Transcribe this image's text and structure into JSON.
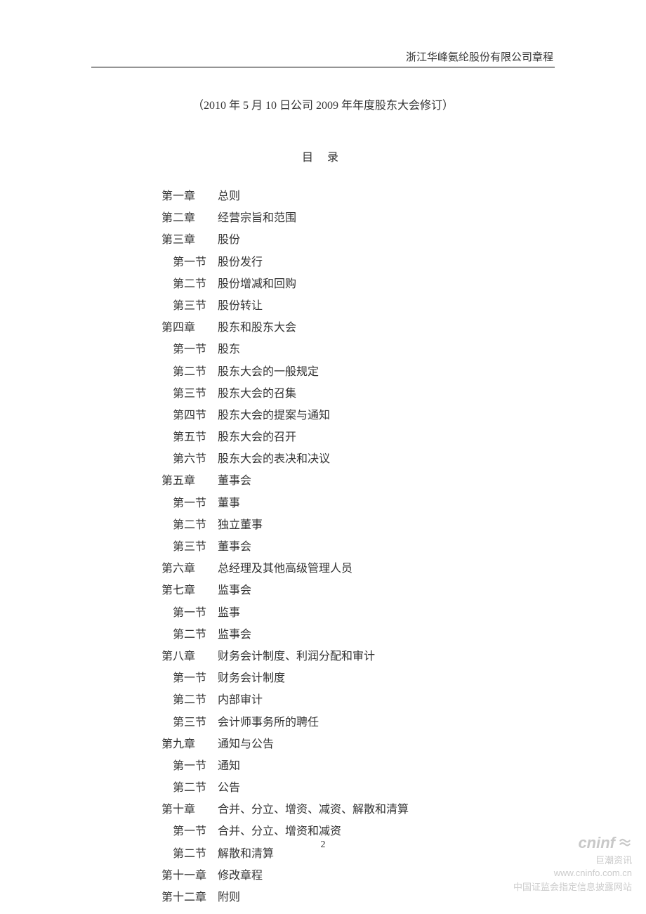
{
  "header": {
    "company_name": "浙江华峰氨纶股份有限公司章程"
  },
  "subtitle": "（2010 年 5 月 10 日公司 2009 年年度股东大会修订）",
  "toc_title": "目 录",
  "toc": [
    {
      "type": "chapter",
      "label": "第一章",
      "title": "总则"
    },
    {
      "type": "chapter",
      "label": "第二章",
      "title": "经营宗旨和范围"
    },
    {
      "type": "chapter",
      "label": "第三章",
      "title": "股份"
    },
    {
      "type": "section",
      "label": "第一节",
      "title": "股份发行"
    },
    {
      "type": "section",
      "label": "第二节",
      "title": "股份增减和回购"
    },
    {
      "type": "section",
      "label": "第三节",
      "title": "股份转让"
    },
    {
      "type": "chapter",
      "label": "第四章",
      "title": "股东和股东大会"
    },
    {
      "type": "section",
      "label": "第一节",
      "title": "股东"
    },
    {
      "type": "section",
      "label": "第二节",
      "title": "股东大会的一般规定"
    },
    {
      "type": "section",
      "label": "第三节",
      "title": "股东大会的召集"
    },
    {
      "type": "section",
      "label": "第四节",
      "title": "股东大会的提案与通知"
    },
    {
      "type": "section",
      "label": "第五节",
      "title": "股东大会的召开"
    },
    {
      "type": "section",
      "label": "第六节",
      "title": "股东大会的表决和决议"
    },
    {
      "type": "chapter",
      "label": "第五章",
      "title": "董事会"
    },
    {
      "type": "section",
      "label": "第一节",
      "title": "董事"
    },
    {
      "type": "section",
      "label": "第二节",
      "title": "独立董事"
    },
    {
      "type": "section",
      "label": "第三节",
      "title": "董事会"
    },
    {
      "type": "chapter",
      "label": "第六章",
      "title": "总经理及其他高级管理人员"
    },
    {
      "type": "chapter",
      "label": "第七章",
      "title": "监事会"
    },
    {
      "type": "section",
      "label": "第一节",
      "title": "监事"
    },
    {
      "type": "section",
      "label": "第二节",
      "title": "监事会"
    },
    {
      "type": "chapter",
      "label": "第八章",
      "title": "财务会计制度、利润分配和审计"
    },
    {
      "type": "section",
      "label": "第一节",
      "title": "财务会计制度"
    },
    {
      "type": "section",
      "label": "第二节",
      "title": "内部审计"
    },
    {
      "type": "section",
      "label": "第三节",
      "title": "会计师事务所的聘任"
    },
    {
      "type": "chapter",
      "label": "第九章",
      "title": "通知与公告"
    },
    {
      "type": "section",
      "label": "第一节",
      "title": "通知"
    },
    {
      "type": "section",
      "label": "第二节",
      "title": "公告"
    },
    {
      "type": "chapter",
      "label": "第十章",
      "title": "合并、分立、增资、减资、解散和清算"
    },
    {
      "type": "section",
      "label": "第一节",
      "title": "合并、分立、增资和减资"
    },
    {
      "type": "section",
      "label": "第二节",
      "title": "解散和清算"
    },
    {
      "type": "chapter",
      "label": "第十一章",
      "title": "修改章程"
    },
    {
      "type": "chapter",
      "label": "第十二章",
      "title": "附则"
    }
  ],
  "page_number": "2",
  "watermark": {
    "logo_text": "cninf",
    "sub_text": "巨潮资讯",
    "url": "www.cninfo.com.cn",
    "desc": "中国证监会指定信息披露网站"
  },
  "colors": {
    "text": "#333333",
    "background": "#ffffff",
    "border": "#000000",
    "watermark": "#cccccc"
  }
}
